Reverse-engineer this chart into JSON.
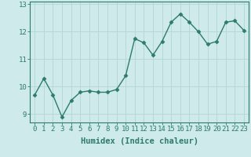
{
  "x": [
    0,
    1,
    2,
    3,
    4,
    5,
    6,
    7,
    8,
    9,
    10,
    11,
    12,
    13,
    14,
    15,
    16,
    17,
    18,
    19,
    20,
    21,
    22,
    23
  ],
  "y": [
    9.7,
    10.3,
    9.7,
    8.9,
    9.5,
    9.8,
    9.85,
    9.8,
    9.8,
    9.9,
    10.4,
    11.75,
    11.6,
    11.15,
    11.65,
    12.35,
    12.65,
    12.35,
    12.0,
    11.55,
    11.65,
    12.35,
    12.4,
    12.05
  ],
  "line_color": "#2d7a6e",
  "marker": "D",
  "marker_size": 2.5,
  "bg_color": "#ceeaea",
  "grid_color": "#b8d8d8",
  "xlabel": "Humidex (Indice chaleur)",
  "ylim": [
    8.7,
    13.1
  ],
  "xlim": [
    -0.5,
    23.5
  ],
  "yticks": [
    9,
    10,
    11,
    12,
    13
  ],
  "xticks": [
    0,
    1,
    2,
    3,
    4,
    5,
    6,
    7,
    8,
    9,
    10,
    11,
    12,
    13,
    14,
    15,
    16,
    17,
    18,
    19,
    20,
    21,
    22,
    23
  ],
  "tick_label_fontsize": 6.5,
  "xlabel_fontsize": 7.5,
  "tick_color": "#2d7a6e",
  "axis_color": "#2d7a6e",
  "line_width": 1.0
}
